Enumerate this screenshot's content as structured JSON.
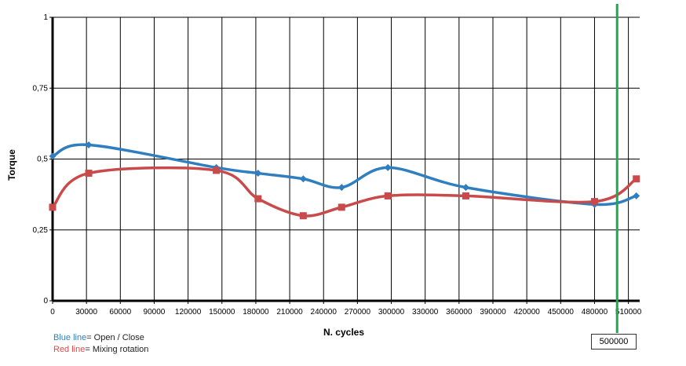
{
  "chart_data": {
    "type": "line",
    "xlabel": "N. cycles",
    "ylabel": "Torque",
    "xlim": [
      0,
      520000
    ],
    "ylim": [
      0,
      1
    ],
    "x_ticks": [
      0,
      30000,
      60000,
      90000,
      120000,
      150000,
      180000,
      210000,
      240000,
      270000,
      300000,
      330000,
      360000,
      390000,
      420000,
      450000,
      480000,
      510000
    ],
    "y_ticks": [
      0,
      0.25,
      0.5,
      0.75,
      1
    ],
    "y_tick_labels": [
      "0",
      "0,25",
      "0,5",
      "0,75",
      "1"
    ],
    "grid": true,
    "series": [
      {
        "name": "Open / Close",
        "color": "#2f7fc0",
        "marker": "diamond",
        "x": [
          0,
          32000,
          145000,
          182000,
          222000,
          256000,
          297000,
          366000,
          480000,
          517000
        ],
        "y": [
          0.51,
          0.55,
          0.47,
          0.45,
          0.43,
          0.4,
          0.47,
          0.4,
          0.34,
          0.37
        ]
      },
      {
        "name": "Mixing rotation",
        "color": "#c94a4a",
        "marker": "square",
        "x": [
          0,
          32000,
          145000,
          182000,
          222000,
          256000,
          297000,
          366000,
          480000,
          517000
        ],
        "y": [
          0.33,
          0.45,
          0.46,
          0.36,
          0.3,
          0.33,
          0.37,
          0.37,
          0.35,
          0.43
        ]
      }
    ],
    "vertical_marker": {
      "x": 500000,
      "label": "500000",
      "color": "#1fa84f"
    }
  },
  "legend": {
    "blue_key": "Blue line",
    "blue_text": "= Open / Close",
    "red_key": "Red line",
    "red_text": "= Mixing rotation"
  }
}
